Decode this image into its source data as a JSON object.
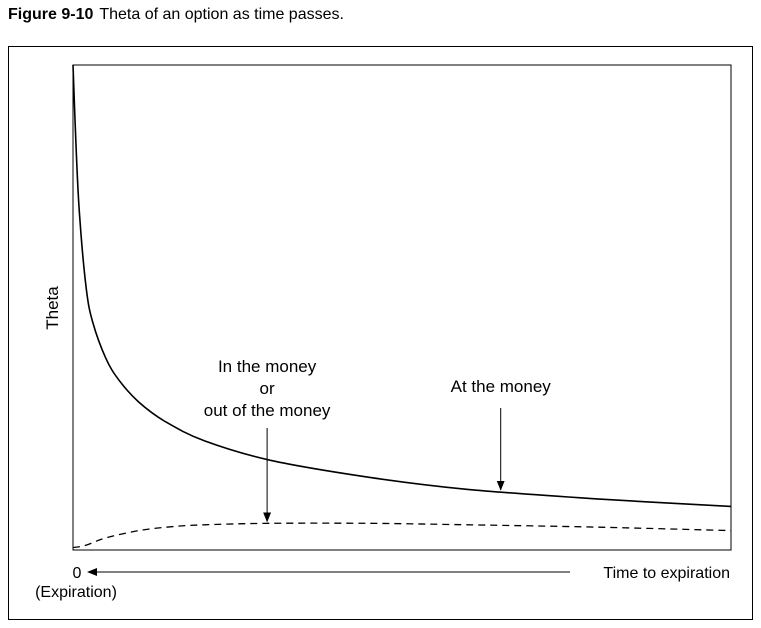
{
  "figure": {
    "number": "Figure 9-10",
    "caption": "Theta of an option as time passes."
  },
  "chart_data": {
    "type": "line",
    "title": "",
    "ylabel": "Theta",
    "xlabel": "Time to expiration",
    "x_origin_label": "0",
    "x_origin_sublabel": "(Expiration)",
    "x_axis_direction": "time to expiration increases to the right; arrow points toward 0 (expiration)",
    "ticks_shown": false,
    "grid": false,
    "xlim": [
      0,
      100
    ],
    "ylim": [
      0,
      100
    ],
    "series": [
      {
        "name": "At the money",
        "style": "solid",
        "color": "#000000",
        "x": [
          0,
          0.5,
          1,
          2,
          3,
          5,
          7,
          10,
          14,
          20,
          30,
          45,
          60,
          80,
          100
        ],
        "y": [
          100,
          82,
          69,
          54,
          47,
          39.5,
          35,
          30.5,
          26.5,
          22.5,
          18.5,
          15,
          12.5,
          10.5,
          9
        ]
      },
      {
        "name": "In the money or out of the money",
        "style": "dashed",
        "color": "#000000",
        "x": [
          0,
          2,
          5,
          10,
          15,
          20,
          30,
          45,
          60,
          80,
          100
        ],
        "y": [
          0.5,
          1,
          2.5,
          4,
          4.8,
          5.2,
          5.5,
          5.5,
          5.2,
          4.7,
          4
        ]
      }
    ],
    "annotations": [
      {
        "lines": [
          "In the money",
          "or",
          "out of the money"
        ],
        "points_to": "In the money or out of the money",
        "x": 29.5
      },
      {
        "lines": [
          "At the money"
        ],
        "points_to": "At the money",
        "x": 65
      }
    ]
  }
}
